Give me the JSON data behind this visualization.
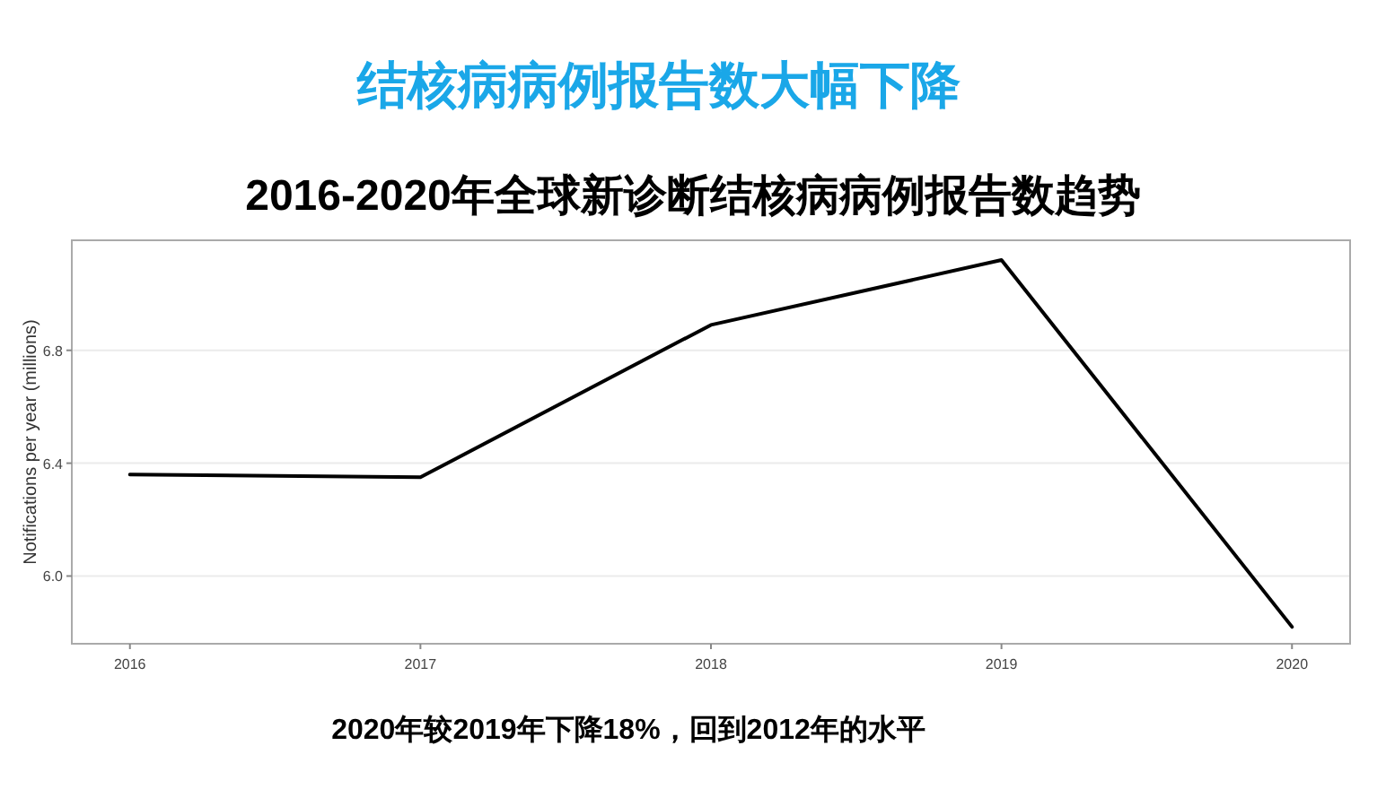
{
  "chart_data": {
    "type": "line",
    "title": "结核病病例报告数大幅下降",
    "subtitle": "2016-2020年全球新诊断结核病病例报告数趋势",
    "ylabel": "Notifications per year (millions)",
    "x": [
      2016,
      2017,
      2018,
      2019,
      2020
    ],
    "series": [
      {
        "color": "#000000",
        "values": [
          6.36,
          6.35,
          6.89,
          7.12,
          5.82
        ]
      }
    ],
    "xlim": [
      2015.8,
      2020.2
    ],
    "xticks": [
      2016,
      2017,
      2018,
      2019,
      2020
    ],
    "ylim": [
      5.76,
      7.19
    ],
    "yticks": [
      {
        "value": 6.0,
        "label": "6.0"
      },
      {
        "value": 6.4,
        "label": "6.4"
      },
      {
        "value": 6.8,
        "label": "6.8"
      }
    ],
    "grid": "y",
    "marker": "none",
    "line_style": "solid",
    "annotations": [
      "2020年较2019年下降18%，回到2012年的水平"
    ]
  }
}
